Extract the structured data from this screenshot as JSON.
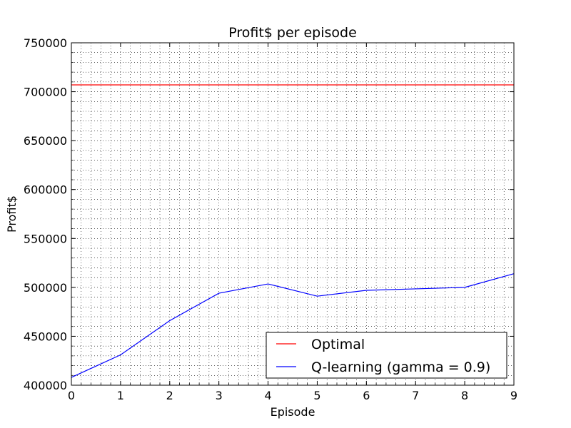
{
  "chart_data": {
    "type": "line",
    "title": "Profit$ per episode",
    "xlabel": "Episode",
    "ylabel": "Profit$",
    "xlim": [
      0,
      9
    ],
    "ylim": [
      400000,
      750000
    ],
    "x_ticks": [
      0,
      1,
      2,
      3,
      4,
      5,
      6,
      7,
      8,
      9
    ],
    "y_ticks": [
      400000,
      450000,
      500000,
      550000,
      600000,
      650000,
      700000,
      750000
    ],
    "grid": true,
    "grid_style": "dotted",
    "minor_ticks": true,
    "legend_position": "lower-right",
    "series": [
      {
        "name": "Optimal",
        "color": "#ff0000",
        "x": [
          0,
          9
        ],
        "values": [
          707000,
          707000
        ]
      },
      {
        "name": "Q-learning (gamma = 0.9)",
        "color": "#0000ff",
        "x": [
          0,
          1,
          2,
          3,
          4,
          5,
          6,
          7,
          8,
          9
        ],
        "values": [
          408000,
          431000,
          466000,
          494000,
          503500,
          491000,
          497000,
          498500,
          500000,
          514000
        ]
      }
    ]
  }
}
